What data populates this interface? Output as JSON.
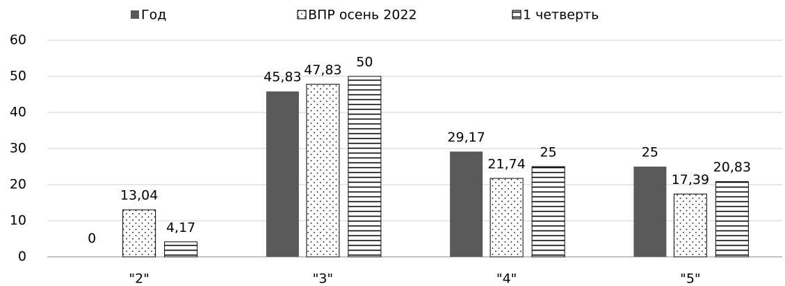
{
  "chart_data": {
    "type": "bar",
    "categories": [
      "\"2\"",
      "\"3\"",
      "\"4\"",
      "\"5\""
    ],
    "series": [
      {
        "name": "Год",
        "color": "#595959",
        "pattern": "solid",
        "values": [
          0,
          45.83,
          29.17,
          25
        ],
        "value_labels": [
          "0",
          "45,83",
          "29,17",
          "25"
        ]
      },
      {
        "name": "ВПР осень 2022",
        "color": "#000000",
        "pattern": "dots",
        "values": [
          13.04,
          47.83,
          21.74,
          17.39
        ],
        "value_labels": [
          "13,04",
          "47,83",
          "21,74",
          "17,39"
        ]
      },
      {
        "name": "1 четверть",
        "color": "#000000",
        "pattern": "hlines",
        "values": [
          4.17,
          50,
          25,
          20.83
        ],
        "value_labels": [
          "4,17",
          "50",
          "25",
          "20,83"
        ]
      }
    ],
    "ylim": [
      0,
      60
    ],
    "yticks": [
      0,
      10,
      20,
      30,
      40,
      50,
      60
    ],
    "grid": true,
    "legend": "top"
  }
}
